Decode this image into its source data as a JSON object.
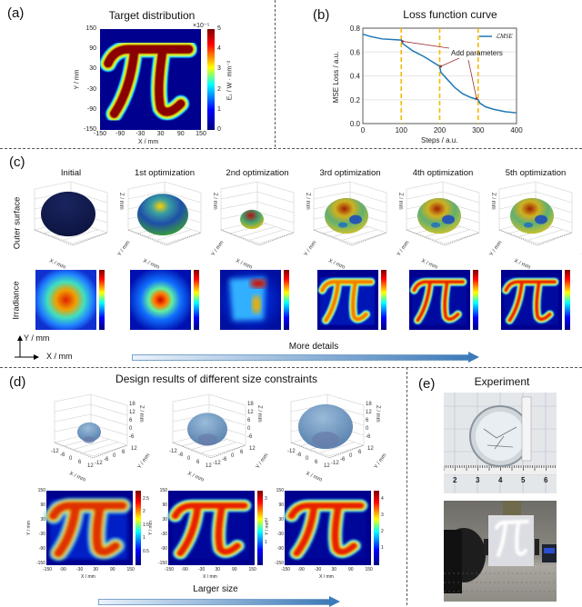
{
  "panels": {
    "a": {
      "label": "(a)",
      "title": "Target distribution",
      "xlabel": "X / mm",
      "ylabel": "Y / mm",
      "xticks": [
        "-150",
        "-90",
        "-30",
        "30",
        "90",
        "150"
      ],
      "yticks": [
        "150",
        "90",
        "30",
        "-30",
        "-90",
        "-150"
      ],
      "colorbar": {
        "label": "E₁ / W · mm⁻²",
        "exponent": "×10⁻⁵",
        "ticks": [
          "5",
          "4",
          "3",
          "2",
          "1",
          "0"
        ]
      },
      "colormap": [
        "#00007f",
        "#0000ff",
        "#00ffff",
        "#ffff00",
        "#ff0000",
        "#7f0000"
      ]
    },
    "b": {
      "label": "(b)",
      "title": "Loss function curve",
      "annotation": "Add parameters",
      "legend": "ℒMSE"
    },
    "c": {
      "label": "(c)",
      "columns": [
        "Initial",
        "1st optimization",
        "2nd optimization",
        "3rd optimization",
        "4th optimization",
        "5th optimization"
      ],
      "row_labels": [
        "Outer surface",
        "Irradiance"
      ],
      "axes3d": {
        "x": "X / mm",
        "y": "Y / mm",
        "z": "Z / mm"
      },
      "coord_y": "Y / mm",
      "coord_x": "X / mm",
      "arrow_label": "More details"
    },
    "d": {
      "label": "(d)",
      "title": "Design results of different size constraints",
      "axes3d": {
        "x": "X / mm",
        "y": "Y / mm",
        "z": "Z / mm"
      },
      "zticks": [
        "18",
        "12",
        "6",
        "0",
        "-6"
      ],
      "xticks3d": [
        "-12",
        "-6",
        "0",
        "6",
        "12"
      ],
      "yticks3d": [
        "12",
        "6",
        "0",
        "-6",
        "-12"
      ],
      "heat_xticks": [
        "-150",
        "-90",
        "-30",
        "30",
        "90",
        "150"
      ],
      "heat_yticks": [
        "150",
        "90",
        "30",
        "-30",
        "-90",
        "-150"
      ],
      "heat_xlabel": "X / mm",
      "heat_ylabel": "Y / mm",
      "colorbar_ticks": [
        [
          "2.5",
          "2",
          "1.5",
          "1",
          "0.5"
        ],
        [
          "3",
          "2",
          "1"
        ],
        [
          "4",
          "3",
          "2",
          "1"
        ]
      ],
      "arrow_label": "Larger size"
    },
    "e": {
      "label": "(e)",
      "title": "Experiment",
      "ruler_ticks": [
        "2",
        "3",
        "4",
        "5",
        "6"
      ]
    }
  },
  "chart_data": {
    "type": "line",
    "title": "Loss function curve",
    "xlabel": "Steps / a.u.",
    "ylabel": "MSE Loss / a.u.",
    "xlim": [
      0,
      400
    ],
    "ylim": [
      0,
      0.8
    ],
    "xticks": [
      "0",
      "100",
      "200",
      "300",
      "400"
    ],
    "yticks": [
      "0.0",
      "0.2",
      "0.4",
      "0.6",
      "0.8"
    ],
    "grid": "horizontal",
    "legend_position": "top-right",
    "series": [
      {
        "name": "ℒMSE",
        "color": "#1f77b4",
        "x": [
          0,
          20,
          50,
          100,
          104,
          130,
          160,
          200,
          203,
          220,
          240,
          260,
          280,
          300,
          305,
          320,
          340,
          370,
          400
        ],
        "y": [
          0.75,
          0.73,
          0.71,
          0.7,
          0.67,
          0.61,
          0.56,
          0.48,
          0.43,
          0.37,
          0.3,
          0.25,
          0.22,
          0.2,
          0.17,
          0.14,
          0.12,
          0.1,
          0.09
        ]
      }
    ],
    "vlines": {
      "x": [
        100,
        200,
        300
      ],
      "color": "#f5b800",
      "style": "dashed"
    }
  }
}
